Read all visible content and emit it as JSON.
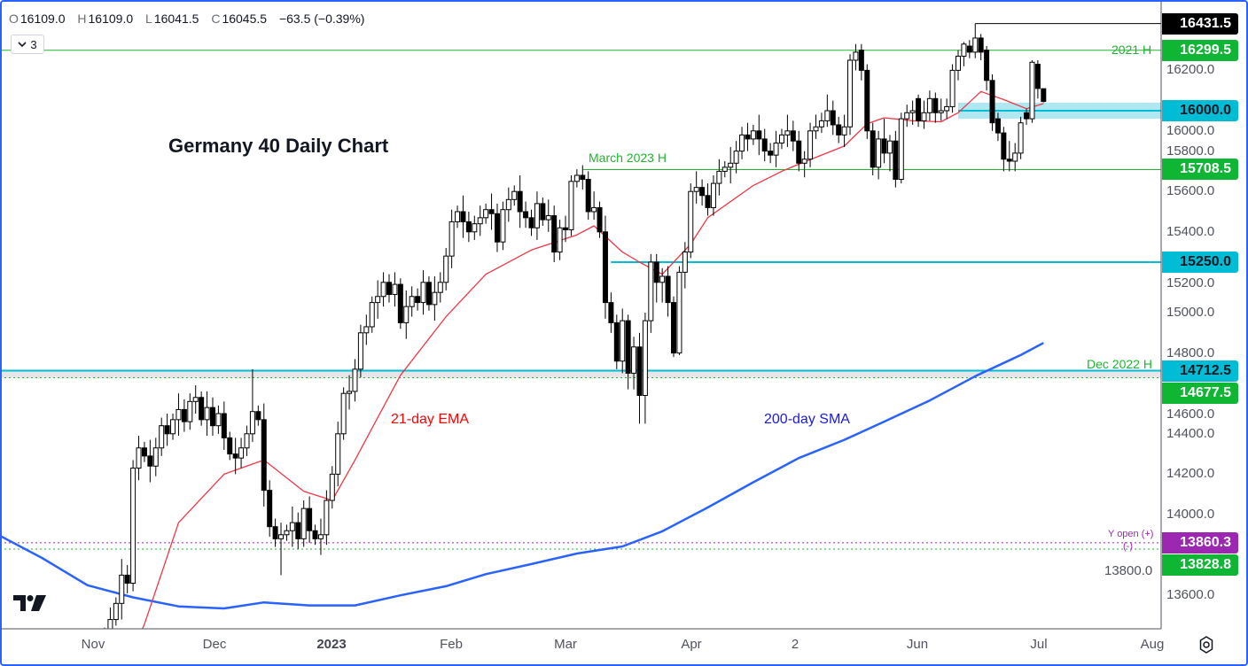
{
  "header": {
    "open_key": "O",
    "open": "16109.0",
    "high_key": "H",
    "high": "16109.0",
    "low_key": "L",
    "low": "16041.5",
    "close_key": "C",
    "close": "16045.5",
    "change": "−63.5 (−0.39%)",
    "indicators_count": "3"
  },
  "annotations": {
    "title": "Germany 40 Daily Chart",
    "ema_label": "21-day EMA",
    "sma_label": "200-day SMA",
    "march_high_label": "March 2023 H",
    "dec_high_label": "Dec 2022 H",
    "high_2021_label": "2021 H",
    "y_open_label": "Y open (+)",
    "y_open_minus": "(-)"
  },
  "colors": {
    "up_body": "#ffffff",
    "down_body": "#000000",
    "wick": "#000000",
    "ema": "#f23645",
    "sma": "#2962ff",
    "green_level": "#089981",
    "level_green": "#1fb52f",
    "level_cyan": "#00bcd4",
    "band_cyan": "#a6e6f0",
    "purple": "#9c27b0",
    "frame": "#2962ff"
  },
  "chart_data": {
    "type": "candlestick",
    "title": "Germany 40 Daily Chart",
    "ylim": [
      13450,
      16550
    ],
    "grid": false,
    "y_ticks": [
      "13600.0",
      "13800.0",
      "14000.0",
      "14200.0",
      "14400.0",
      "14600.0",
      "14800.0",
      "15000.0",
      "15200.0",
      "15400.0",
      "15600.0",
      "15800.0",
      "16000.0",
      "16200.0"
    ],
    "x_ticks": [
      {
        "label": "Nov",
        "bold": false
      },
      {
        "label": "Dec",
        "bold": false
      },
      {
        "label": "2023",
        "bold": true
      },
      {
        "label": "Feb",
        "bold": false
      },
      {
        "label": "Mar",
        "bold": false
      },
      {
        "label": "Apr",
        "bold": false
      },
      {
        "label": "2",
        "bold": false
      },
      {
        "label": "Jun",
        "bold": false
      },
      {
        "label": "Jul",
        "bold": false
      },
      {
        "label": "Aug",
        "bold": false
      }
    ],
    "candles": [
      [
        13350,
        13440,
        13310,
        13400
      ],
      [
        13400,
        13540,
        13340,
        13480
      ],
      [
        13480,
        13590,
        13450,
        13560
      ],
      [
        13560,
        13780,
        13480,
        13700
      ],
      [
        13700,
        13750,
        13610,
        13660
      ],
      [
        13660,
        14270,
        13620,
        14230
      ],
      [
        14230,
        14390,
        14170,
        14330
      ],
      [
        14330,
        14360,
        14260,
        14290
      ],
      [
        14290,
        14370,
        14160,
        14240
      ],
      [
        14240,
        14380,
        14190,
        14330
      ],
      [
        14330,
        14480,
        14290,
        14440
      ],
      [
        14440,
        14500,
        14340,
        14400
      ],
      [
        14400,
        14500,
        14370,
        14470
      ],
      [
        14470,
        14600,
        14390,
        14520
      ],
      [
        14520,
        14570,
        14410,
        14460
      ],
      [
        14460,
        14600,
        14420,
        14560
      ],
      [
        14560,
        14640,
        14500,
        14580
      ],
      [
        14580,
        14610,
        14440,
        14470
      ],
      [
        14470,
        14610,
        14390,
        14530
      ],
      [
        14530,
        14580,
        14390,
        14440
      ],
      [
        14440,
        14540,
        14400,
        14500
      ],
      [
        14500,
        14560,
        14320,
        14380
      ],
      [
        14380,
        14410,
        14270,
        14300
      ],
      [
        14300,
        14380,
        14200,
        14280
      ],
      [
        14280,
        14380,
        14230,
        14330
      ],
      [
        14330,
        14440,
        14290,
        14400
      ],
      [
        14400,
        14720,
        14360,
        14510
      ],
      [
        14510,
        14540,
        14440,
        14470
      ],
      [
        14470,
        14550,
        14040,
        14120
      ],
      [
        14120,
        14170,
        13890,
        13940
      ],
      [
        13940,
        13980,
        13840,
        13880
      ],
      [
        13880,
        13960,
        13700,
        13900
      ],
      [
        13900,
        13950,
        13870,
        13920
      ],
      [
        13920,
        14040,
        13840,
        13960
      ],
      [
        13960,
        14010,
        13830,
        13880
      ],
      [
        13880,
        14070,
        13840,
        14030
      ],
      [
        14030,
        14090,
        13860,
        13920
      ],
      [
        13920,
        13950,
        13850,
        13880
      ],
      [
        13880,
        13980,
        13800,
        13900
      ],
      [
        13900,
        14120,
        13850,
        14070
      ],
      [
        14070,
        14240,
        14030,
        14200
      ],
      [
        14200,
        14460,
        14140,
        14400
      ],
      [
        14400,
        14630,
        14370,
        14600
      ],
      [
        14600,
        14690,
        14520,
        14610
      ],
      [
        14610,
        14770,
        14560,
        14720
      ],
      [
        14720,
        14940,
        14680,
        14900
      ],
      [
        14900,
        14990,
        14840,
        14930
      ],
      [
        14930,
        15080,
        14900,
        15050
      ],
      [
        15050,
        15160,
        14970,
        15080
      ],
      [
        15080,
        15200,
        15030,
        15150
      ],
      [
        15150,
        15190,
        15050,
        15090
      ],
      [
        15090,
        15200,
        15030,
        15140
      ],
      [
        15140,
        15170,
        14920,
        14950
      ],
      [
        14950,
        15110,
        14870,
        15030
      ],
      [
        15030,
        15130,
        14980,
        15080
      ],
      [
        15080,
        15120,
        15010,
        15050
      ],
      [
        15050,
        15210,
        14990,
        15150
      ],
      [
        15150,
        15180,
        15010,
        15040
      ],
      [
        15040,
        15180,
        14960,
        15100
      ],
      [
        15100,
        15200,
        15050,
        15150
      ],
      [
        15150,
        15320,
        15110,
        15280
      ],
      [
        15280,
        15510,
        15220,
        15450
      ],
      [
        15450,
        15530,
        15420,
        15500
      ],
      [
        15500,
        15580,
        15370,
        15450
      ],
      [
        15450,
        15500,
        15350,
        15400
      ],
      [
        15400,
        15480,
        15360,
        15440
      ],
      [
        15440,
        15530,
        15380,
        15470
      ],
      [
        15470,
        15540,
        15440,
        15510
      ],
      [
        15510,
        15590,
        15410,
        15490
      ],
      [
        15490,
        15540,
        15300,
        15350
      ],
      [
        15350,
        15550,
        15310,
        15510
      ],
      [
        15510,
        15620,
        15450,
        15560
      ],
      [
        15560,
        15630,
        15530,
        15600
      ],
      [
        15600,
        15680,
        15420,
        15500
      ],
      [
        15500,
        15550,
        15420,
        15470
      ],
      [
        15470,
        15510,
        15380,
        15420
      ],
      [
        15420,
        15600,
        15360,
        15540
      ],
      [
        15540,
        15570,
        15430,
        15460
      ],
      [
        15460,
        15560,
        15400,
        15480
      ],
      [
        15480,
        15530,
        15250,
        15300
      ],
      [
        15300,
        15460,
        15260,
        15420
      ],
      [
        15420,
        15480,
        15350,
        15410
      ],
      [
        15410,
        15680,
        15380,
        15650
      ],
      [
        15650,
        15710,
        15620,
        15680
      ],
      [
        15680,
        15730,
        15610,
        15660
      ],
      [
        15660,
        15700,
        15460,
        15500
      ],
      [
        15500,
        15600,
        15460,
        15520
      ],
      [
        15520,
        15550,
        15370,
        15400
      ],
      [
        15400,
        15480,
        14970,
        15050
      ],
      [
        15050,
        15100,
        14900,
        14950
      ],
      [
        14950,
        14990,
        14720,
        14760
      ],
      [
        14760,
        15020,
        14700,
        14960
      ],
      [
        14960,
        14990,
        14620,
        14700
      ],
      [
        14700,
        14880,
        14620,
        14830
      ],
      [
        14830,
        14900,
        14450,
        14590
      ],
      [
        14590,
        15000,
        14450,
        14960
      ],
      [
        14960,
        15290,
        14900,
        15250
      ],
      [
        15250,
        15290,
        15050,
        15150
      ],
      [
        15150,
        15220,
        15050,
        15180
      ],
      [
        15180,
        15230,
        14980,
        15050
      ],
      [
        15050,
        15080,
        14780,
        14800
      ],
      [
        14800,
        15230,
        14790,
        15200
      ],
      [
        15200,
        15350,
        15120,
        15300
      ],
      [
        15300,
        15640,
        15270,
        15600
      ],
      [
        15600,
        15700,
        15540,
        15620
      ],
      [
        15620,
        15660,
        15530,
        15580
      ],
      [
        15580,
        15640,
        15480,
        15520
      ],
      [
        15520,
        15680,
        15480,
        15640
      ],
      [
        15640,
        15760,
        15580,
        15700
      ],
      [
        15700,
        15750,
        15670,
        15720
      ],
      [
        15720,
        15820,
        15640,
        15740
      ],
      [
        15740,
        15850,
        15690,
        15800
      ],
      [
        15800,
        15920,
        15760,
        15880
      ],
      [
        15880,
        15940,
        15800,
        15860
      ],
      [
        15860,
        15930,
        15830,
        15900
      ],
      [
        15900,
        15980,
        15780,
        15860
      ],
      [
        15860,
        15910,
        15750,
        15800
      ],
      [
        15800,
        15840,
        15740,
        15780
      ],
      [
        15780,
        15900,
        15720,
        15840
      ],
      [
        15840,
        15910,
        15810,
        15880
      ],
      [
        15880,
        15980,
        15820,
        15900
      ],
      [
        15900,
        15950,
        15800,
        15850
      ],
      [
        15850,
        15900,
        15700,
        15740
      ],
      [
        15740,
        15800,
        15670,
        15760
      ],
      [
        15760,
        15940,
        15720,
        15900
      ],
      [
        15900,
        15980,
        15860,
        15920
      ],
      [
        15920,
        15990,
        15890,
        15950
      ],
      [
        15950,
        16080,
        15920,
        16000
      ],
      [
        16000,
        16050,
        15880,
        15930
      ],
      [
        15930,
        15970,
        15840,
        15880
      ],
      [
        15880,
        15980,
        15820,
        15920
      ],
      [
        15920,
        16280,
        15880,
        16250
      ],
      [
        16250,
        16330,
        16200,
        16290
      ],
      [
        16300,
        16330,
        16150,
        16200
      ],
      [
        16200,
        16230,
        15860,
        15900
      ],
      [
        15900,
        15940,
        15680,
        15720
      ],
      [
        15720,
        15900,
        15660,
        15860
      ],
      [
        15860,
        15960,
        15740,
        15790
      ],
      [
        15790,
        15880,
        15700,
        15850
      ],
      [
        15850,
        15900,
        15620,
        15660
      ],
      [
        15660,
        15990,
        15640,
        15960
      ],
      [
        15960,
        16030,
        15920,
        15990
      ],
      [
        15990,
        16050,
        15930,
        16000
      ],
      [
        16060,
        16080,
        15920,
        15950
      ],
      [
        15950,
        16050,
        15910,
        15990
      ],
      [
        15990,
        16100,
        15950,
        16060
      ],
      [
        16060,
        16090,
        15940,
        15990
      ],
      [
        15990,
        16060,
        15950,
        16000
      ],
      [
        16000,
        16060,
        15960,
        16020
      ],
      [
        16020,
        16230,
        15990,
        16200
      ],
      [
        16200,
        16300,
        16150,
        16270
      ],
      [
        16270,
        16340,
        16220,
        16330
      ],
      [
        16320,
        16350,
        16260,
        16290
      ],
      [
        16290,
        16431.5,
        16260,
        16360
      ],
      [
        16360,
        16380,
        16250,
        16290
      ],
      [
        16300,
        16320,
        16100,
        16150
      ],
      [
        16150,
        16180,
        15900,
        15940
      ],
      [
        15960,
        15990,
        15850,
        15890
      ],
      [
        15890,
        15920,
        15700,
        15760
      ],
      [
        15760,
        15850,
        15700,
        15750
      ],
      [
        15750,
        15840,
        15700,
        15790
      ],
      [
        15790,
        15970,
        15760,
        15940
      ],
      [
        15990,
        16010,
        15930,
        15960
      ],
      [
        15960,
        16250,
        15940,
        16240
      ],
      [
        16230,
        16250,
        16060,
        16110
      ],
      [
        16109,
        16109,
        16041.5,
        16045.5
      ]
    ],
    "ema21": [
      [
        3,
        13200
      ],
      [
        7,
        13456
      ],
      [
        13,
        13960
      ],
      [
        21,
        14200
      ],
      [
        28,
        14270
      ],
      [
        35,
        14115
      ],
      [
        40,
        14070
      ],
      [
        44,
        14270
      ],
      [
        52,
        14690
      ],
      [
        60,
        14980
      ],
      [
        67,
        15190
      ],
      [
        75,
        15310
      ],
      [
        83,
        15385
      ],
      [
        86,
        15430
      ],
      [
        91,
        15300
      ],
      [
        94,
        15250
      ],
      [
        98,
        15190
      ],
      [
        103,
        15340
      ],
      [
        106,
        15470
      ],
      [
        114,
        15630
      ],
      [
        119,
        15700
      ],
      [
        122,
        15735
      ],
      [
        130,
        15825
      ],
      [
        134,
        15935
      ],
      [
        137,
        15965
      ],
      [
        142,
        15950
      ],
      [
        147,
        15945
      ],
      [
        150,
        15990
      ],
      [
        154,
        16095
      ],
      [
        158,
        16055
      ],
      [
        162,
        16010
      ],
      [
        165,
        16035
      ]
    ],
    "sma200": [
      [
        -19,
        13904
      ],
      [
        -11,
        13785
      ],
      [
        -3,
        13650
      ],
      [
        5,
        13590
      ],
      [
        13,
        13545
      ],
      [
        21,
        13535
      ],
      [
        28,
        13565
      ],
      [
        36,
        13550
      ],
      [
        44,
        13550
      ],
      [
        52,
        13600
      ],
      [
        60,
        13645
      ],
      [
        67,
        13705
      ],
      [
        75,
        13755
      ],
      [
        83,
        13807
      ],
      [
        91,
        13842
      ],
      [
        98,
        13917
      ],
      [
        106,
        14035
      ],
      [
        114,
        14160
      ],
      [
        122,
        14280
      ],
      [
        130,
        14370
      ],
      [
        137,
        14460
      ],
      [
        145,
        14565
      ],
      [
        153,
        14685
      ],
      [
        161,
        14790
      ],
      [
        165,
        14850
      ]
    ],
    "levels": [
      {
        "price": 16431.5,
        "label": "16431.5",
        "style": "solid",
        "color": "#000000",
        "tag_bg": "#000000",
        "tag_fg": "#ffffff",
        "from_bar": 153
      },
      {
        "price": 16299.5,
        "label": "16299.5",
        "style": "solid",
        "color": "#1fb52f",
        "tag_bg": "#0fb634",
        "tag_fg": "#ffffff",
        "from_bar": null,
        "name": "2021 H"
      },
      {
        "price": 16000.0,
        "label": "16000.0",
        "style": "solid",
        "color": "#00bcd4",
        "tag_bg": "#00bcd4",
        "tag_fg": "#131722",
        "from_bar": 150,
        "band": [
          15960,
          16040
        ]
      },
      {
        "price": 15708.5,
        "label": "15708.5",
        "style": "solid",
        "color": "#1fb52f",
        "tag_bg": "#0fb634",
        "tag_fg": "#ffffff",
        "from_bar": 84,
        "name": "March 2023 H"
      },
      {
        "price": 15250.0,
        "label": "15250.0",
        "style": "solid",
        "color": "#00bcd4",
        "tag_bg": "#00bcd4",
        "tag_fg": "#131722",
        "from_bar": 89
      },
      {
        "price": 14712.5,
        "label": "14712.5",
        "style": "solid",
        "color": "#00bcd4",
        "tag_bg": "#00bcd4",
        "tag_fg": "#131722",
        "from_bar": null,
        "name": "Dec 2022 H",
        "band": [
          14677.5,
          14712.5
        ]
      },
      {
        "price": 14677.5,
        "label": "14677.5",
        "style": "dotted",
        "color": "#1fb52f",
        "tag_bg": "#0fb634",
        "tag_fg": "#ffffff",
        "from_bar": null
      },
      {
        "price": 13860.3,
        "label": "13860.3",
        "style": "dotted",
        "color": "#9c27b0",
        "tag_bg": "#9c27b0",
        "tag_fg": "#ffffff",
        "from_bar": null,
        "name": "Y open (+)"
      },
      {
        "price": 13828.8,
        "label": "13828.8",
        "style": "dotted",
        "color": "#1fb52f",
        "tag_bg": "#0fb634",
        "tag_fg": "#ffffff",
        "from_bar": null
      }
    ]
  },
  "icons": {
    "logo": "tradingview-logo",
    "settings": "gear-icon",
    "collapse": "chevron-down-icon"
  }
}
